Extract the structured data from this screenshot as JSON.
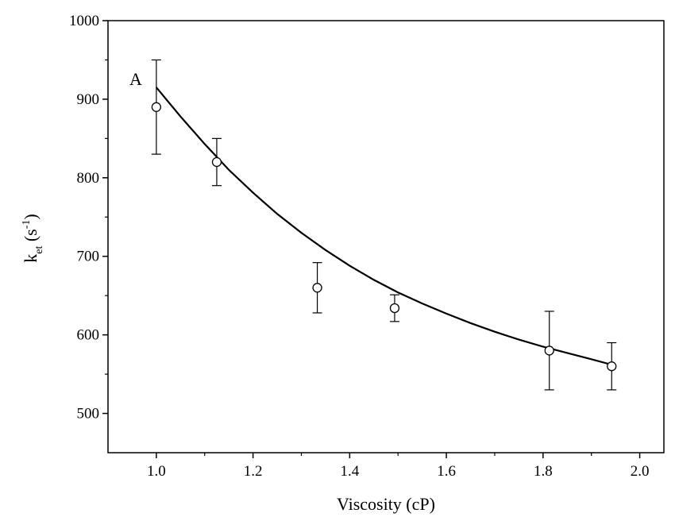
{
  "chart_data": {
    "type": "scatter",
    "panel_label": "A",
    "xlabel": "Viscosity (cP)",
    "ylabel": {
      "base": "k",
      "subscript": "et",
      "unit_open": " (s",
      "unit_sup": "-1",
      "unit_close": ")"
    },
    "xlim": [
      0.9,
      2.05
    ],
    "ylim": [
      450,
      1000
    ],
    "x_ticks": [
      "1.0",
      "1.2",
      "1.4",
      "1.6",
      "1.8",
      "2.0"
    ],
    "y_ticks": [
      "500",
      "600",
      "700",
      "800",
      "900",
      "1000"
    ],
    "grid": false,
    "series": [
      {
        "marker": "open-circle",
        "points": [
          {
            "x": 1.0,
            "y": 890,
            "err_low": 830,
            "err_high": 950
          },
          {
            "x": 1.125,
            "y": 820,
            "err_low": 790,
            "err_high": 850
          },
          {
            "x": 1.333,
            "y": 660,
            "err_low": 628,
            "err_high": 692
          },
          {
            "x": 1.493,
            "y": 634,
            "err_low": 617,
            "err_high": 651
          },
          {
            "x": 1.813,
            "y": 580,
            "err_low": 530,
            "err_high": 630
          },
          {
            "x": 1.942,
            "y": 560,
            "err_low": 530,
            "err_high": 590
          }
        ]
      }
    ],
    "fit_curve": {
      "style": "solid",
      "points": [
        [
          1.0,
          915
        ],
        [
          1.05,
          878
        ],
        [
          1.1,
          843
        ],
        [
          1.15,
          810
        ],
        [
          1.2,
          781
        ],
        [
          1.25,
          754
        ],
        [
          1.3,
          730
        ],
        [
          1.35,
          708
        ],
        [
          1.4,
          688
        ],
        [
          1.45,
          670
        ],
        [
          1.5,
          654
        ],
        [
          1.55,
          640
        ],
        [
          1.6,
          627
        ],
        [
          1.65,
          615
        ],
        [
          1.7,
          604
        ],
        [
          1.75,
          594
        ],
        [
          1.8,
          585
        ],
        [
          1.85,
          577
        ],
        [
          1.9,
          569
        ],
        [
          1.942,
          562
        ]
      ]
    }
  }
}
